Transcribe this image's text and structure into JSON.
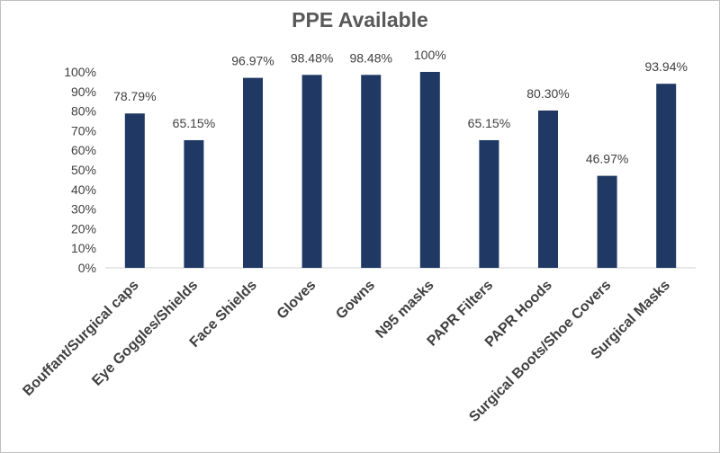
{
  "chart_data": {
    "type": "bar",
    "title": "PPE Available",
    "xlabel": "",
    "ylabel": "",
    "categories": [
      "Bouffant/Surgical caps",
      "Eye Goggles/Shields",
      "Face Shields",
      "Gloves",
      "Gowns",
      "N95 masks",
      "PAPR Filters",
      "PAPR Hoods",
      "Surgical Boots/Shoe Covers",
      "Surgical Masks"
    ],
    "values": [
      78.79,
      65.15,
      96.97,
      98.48,
      98.48,
      100,
      65.15,
      80.3,
      46.97,
      93.94
    ],
    "data_labels": [
      "78.79%",
      "65.15%",
      "96.97%",
      "98.48%",
      "98.48%",
      "100%",
      "65.15%",
      "80.30%",
      "46.97%",
      "93.94%"
    ],
    "ylim": [
      0,
      100
    ],
    "yticks": [
      0,
      10,
      20,
      30,
      40,
      50,
      60,
      70,
      80,
      90,
      100
    ],
    "ytick_labels": [
      "0%",
      "10%",
      "20%",
      "30%",
      "40%",
      "50%",
      "60%",
      "70%",
      "80%",
      "90%",
      "100%"
    ],
    "grid": false,
    "legend": "none",
    "bar_color": "#203864"
  }
}
